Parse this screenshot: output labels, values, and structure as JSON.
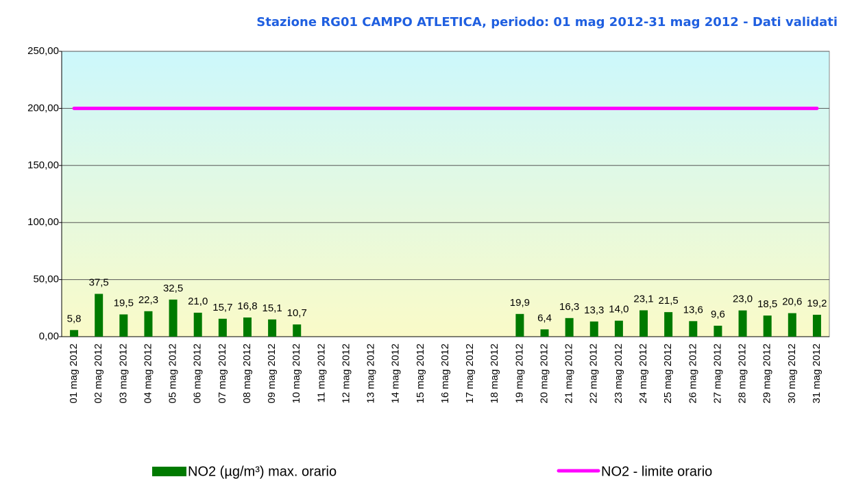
{
  "chart_data": {
    "type": "bar",
    "title": "Stazione RG01 CAMPO ATLETICA, periodo: 01 mag 2012-31 mag 2012 - Dati validati",
    "categories": [
      "01 mag 2012",
      "02 mag 2012",
      "03 mag 2012",
      "04 mag 2012",
      "05 mag 2012",
      "06 mag 2012",
      "07 mag 2012",
      "08 mag 2012",
      "09 mag 2012",
      "10 mag 2012",
      "11 mag 2012",
      "12 mag 2012",
      "13 mag 2012",
      "14 mag 2012",
      "15 mag 2012",
      "16 mag 2012",
      "17 mag 2012",
      "18 mag 2012",
      "19 mag 2012",
      "20 mag 2012",
      "21 mag 2012",
      "22 mag 2012",
      "23 mag 2012",
      "24 mag 2012",
      "25 mag 2012",
      "26 mag 2012",
      "27 mag 2012",
      "28 mag 2012",
      "29 mag 2012",
      "30 mag 2012",
      "31 mag 2012"
    ],
    "series": [
      {
        "name": "NO2 (µg/m³) max. orario",
        "type": "bar",
        "color": "#007a00",
        "values": [
          5.8,
          37.5,
          19.5,
          22.3,
          32.5,
          21.0,
          15.7,
          16.8,
          15.1,
          10.7,
          null,
          null,
          null,
          null,
          null,
          null,
          null,
          null,
          19.9,
          6.4,
          16.3,
          13.3,
          14.0,
          23.1,
          21.5,
          13.6,
          9.6,
          23.0,
          18.5,
          20.6,
          19.2
        ],
        "value_labels": [
          "5,8",
          "37,5",
          "19,5",
          "22,3",
          "32,5",
          "21,0",
          "15,7",
          "16,8",
          "15,1",
          "10,7",
          null,
          null,
          null,
          null,
          null,
          null,
          null,
          null,
          "19,9",
          "6,4",
          "16,3",
          "13,3",
          "14,0",
          "23,1",
          "21,5",
          "13,6",
          "9,6",
          "23,0",
          "18,5",
          "20,6",
          "19,2"
        ]
      },
      {
        "name": "NO2 - limite orario",
        "type": "line",
        "color": "#ff00ff",
        "values": [
          200,
          200,
          200,
          200,
          200,
          200,
          200,
          200,
          200,
          200,
          200,
          200,
          200,
          200,
          200,
          200,
          200,
          200,
          200,
          200,
          200,
          200,
          200,
          200,
          200,
          200,
          200,
          200,
          200,
          200,
          200
        ]
      }
    ],
    "ylim": [
      0,
      250
    ],
    "yticks": [
      {
        "value": 0,
        "label": "0,00"
      },
      {
        "value": 50,
        "label": "50,00"
      },
      {
        "value": 100,
        "label": "100,00"
      },
      {
        "value": 150,
        "label": "150,00"
      },
      {
        "value": 200,
        "label": "200,00"
      },
      {
        "value": 250,
        "label": "250,00"
      }
    ],
    "grid": true
  }
}
